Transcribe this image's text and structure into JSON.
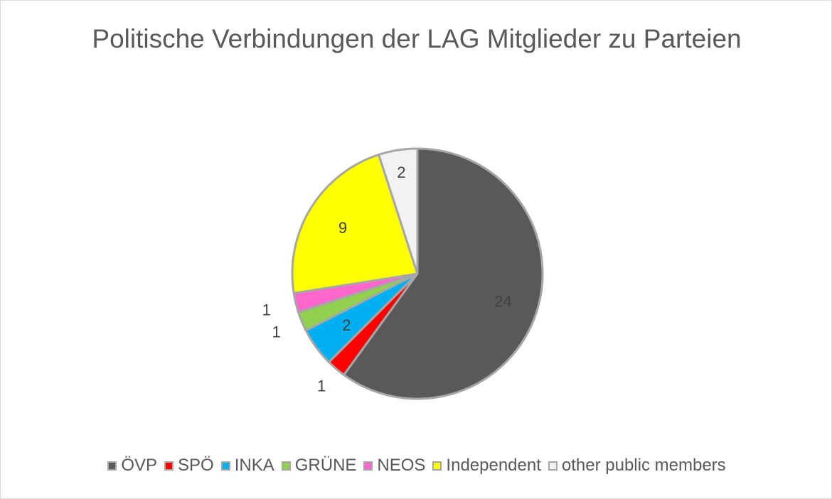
{
  "chart_data": {
    "type": "pie",
    "title": "Politische Verbindungen der LAG Mitglieder zu Parteien",
    "categories": [
      "ÖVP",
      "SPÖ",
      "INKA",
      "GRÜNE",
      "NEOS",
      "Independent",
      "other public members"
    ],
    "values": [
      24,
      1,
      2,
      1,
      1,
      9,
      2
    ],
    "colors": [
      "#595959",
      "#ff0000",
      "#00b0f0",
      "#92d050",
      "#ff66cc",
      "#ffff00",
      "#f2f2f2"
    ],
    "slice_border_color": "#a6a6a6",
    "start_angle_deg": 0,
    "direction": "clockwise",
    "legend_position": "bottom",
    "data_labels_shown": true
  }
}
